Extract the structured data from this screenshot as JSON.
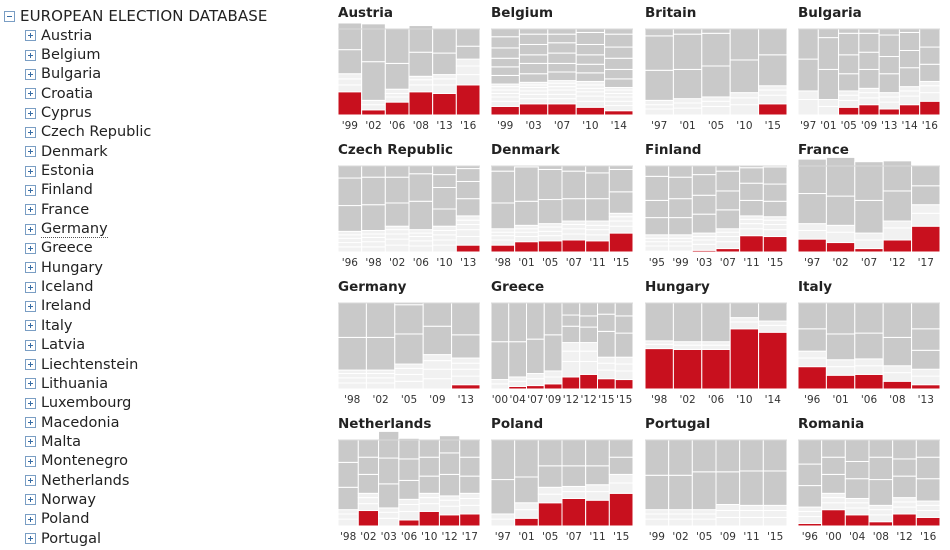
{
  "tree": {
    "root_label": "EUROPEAN ELECTION DATABASE",
    "hovered_index": 10,
    "items": [
      "Austria",
      "Belgium",
      "Bulgaria",
      "Croatia",
      "Cyprus",
      "Czech Republic",
      "Denmark",
      "Estonia",
      "Finland",
      "France",
      "Germany",
      "Greece",
      "Hungary",
      "Iceland",
      "Ireland",
      "Italy",
      "Latvia",
      "Liechtenstein",
      "Lithuania",
      "Luxembourg",
      "Macedonia",
      "Malta",
      "Montenegro",
      "Netherlands",
      "Norway",
      "Poland",
      "Portugal"
    ]
  },
  "colors": {
    "highlight": "#c8101e",
    "upper": "#c9c9c9",
    "lower": "#f1f1f1",
    "divider": "#ffffff",
    "grid_top": "#d9d9d9"
  },
  "chart_data": [
    {
      "type": "bar",
      "title": "Austria",
      "stacked": true,
      "ylim": [
        0,
        100
      ],
      "categories": [
        "'99",
        "'02",
        "'06",
        "'08",
        "'13",
        "'16"
      ],
      "highlight": [
        27,
        6,
        15,
        27,
        25,
        35
      ],
      "lower": [
        [
          8,
          7,
          6
        ],
        [
          6,
          5
        ],
        [
          6,
          4,
          5
        ],
        [
          8,
          6,
          4
        ],
        [
          10,
          7,
          5
        ],
        [
          12,
          10,
          8
        ]
      ],
      "upper": [
        [
          28,
          31
        ],
        [
          45,
          44
        ],
        [
          30,
          40
        ],
        [
          28,
          31
        ],
        [
          25,
          28
        ],
        [
          15,
          20
        ]
      ]
    },
    {
      "type": "bar",
      "title": "Belgium",
      "stacked": true,
      "ylim": [
        0,
        100
      ],
      "categories": [
        "'99",
        "'03",
        "'07",
        "'10",
        "'14"
      ],
      "highlight": [
        10,
        13,
        13,
        9,
        5
      ],
      "lower": [
        [
          6,
          5,
          4,
          4,
          4,
          3
        ],
        [
          6,
          5,
          4,
          4,
          3,
          3
        ],
        [
          6,
          5,
          5,
          4,
          4,
          3
        ],
        [
          7,
          6,
          5,
          4,
          4,
          4
        ],
        [
          6,
          5,
          5,
          4,
          4,
          3
        ]
      ],
      "upper": [
        [
          10,
          10,
          10,
          12,
          13
        ],
        [
          10,
          12,
          10,
          12,
          12
        ],
        [
          10,
          10,
          12,
          12,
          10
        ],
        [
          10,
          10,
          11,
          12,
          14
        ],
        [
          10,
          11,
          13,
          13,
          15
        ]
      ]
    },
    {
      "type": "bar",
      "title": "Britain",
      "stacked": true,
      "ylim": [
        0,
        100
      ],
      "categories": [
        "'97",
        "'01",
        "'05",
        "'10",
        "'15"
      ],
      "highlight": [
        0,
        0,
        0,
        0,
        13
      ],
      "lower": [
        [
          7,
          5,
          5
        ],
        [
          8,
          6,
          5
        ],
        [
          10,
          6,
          5
        ],
        [
          12,
          8,
          6
        ],
        [
          10,
          6,
          5
        ]
      ],
      "upper": [
        [
          35,
          40
        ],
        [
          34,
          41
        ],
        [
          36,
          38
        ],
        [
          38,
          36
        ],
        [
          36,
          30
        ]
      ]
    },
    {
      "type": "bar",
      "title": "Bulgaria",
      "stacked": true,
      "ylim": [
        0,
        100
      ],
      "categories": [
        "'97",
        "'01",
        "'05",
        "'09",
        "'13",
        "'14",
        "'16"
      ],
      "highlight": [
        0,
        0,
        9,
        12,
        7,
        12,
        16
      ],
      "lower": [
        [
          18,
          10
        ],
        [
          10,
          8
        ],
        [
          8,
          6,
          5
        ],
        [
          8,
          6,
          5
        ],
        [
          8,
          6,
          5
        ],
        [
          10,
          6,
          5
        ],
        [
          10,
          8,
          5
        ]
      ],
      "upper": [
        [
          37,
          35
        ],
        [
          35,
          37
        ],
        [
          20,
          22,
          25
        ],
        [
          22,
          20,
          22
        ],
        [
          22,
          20,
          25
        ],
        [
          22,
          20,
          21
        ],
        [
          20,
          20,
          21
        ]
      ]
    },
    {
      "type": "bar",
      "title": "Czech Republic",
      "stacked": true,
      "ylim": [
        0,
        100
      ],
      "categories": [
        "'96",
        "'98",
        "'02",
        "'06",
        "'10",
        "'13"
      ],
      "highlight": [
        0,
        0,
        0,
        0,
        0,
        8
      ],
      "lower": [
        [
          6,
          5,
          5,
          4,
          4
        ],
        [
          6,
          6,
          5,
          4,
          4
        ],
        [
          8,
          7,
          6,
          5,
          4
        ],
        [
          7,
          6,
          5,
          4,
          4
        ],
        [
          8,
          6,
          6,
          5,
          5
        ],
        [
          10,
          8,
          6,
          5,
          5
        ]
      ],
      "upper": [
        [
          30,
          32
        ],
        [
          30,
          32
        ],
        [
          27,
          30
        ],
        [
          33,
          32
        ],
        [
          20,
          25,
          15
        ],
        [
          20,
          20,
          15
        ]
      ]
    },
    {
      "type": "bar",
      "title": "Denmark",
      "stacked": true,
      "ylim": [
        0,
        100
      ],
      "categories": [
        "'98",
        "'01",
        "'05",
        "'07",
        "'11",
        "'15"
      ],
      "highlight": [
        8,
        12,
        13,
        14,
        13,
        22
      ],
      "lower": [
        [
          6,
          5,
          4,
          4
        ],
        [
          6,
          5,
          4,
          4
        ],
        [
          6,
          5,
          5,
          4
        ],
        [
          7,
          6,
          5,
          4
        ],
        [
          7,
          6,
          5,
          5
        ],
        [
          8,
          6,
          5,
          4
        ]
      ],
      "upper": [
        [
          30,
          37
        ],
        [
          28,
          40
        ],
        [
          28,
          35
        ],
        [
          26,
          32
        ],
        [
          26,
          30
        ],
        [
          25,
          26
        ]
      ]
    },
    {
      "type": "bar",
      "title": "Finland",
      "stacked": true,
      "ylim": [
        0,
        100
      ],
      "categories": [
        "'95",
        "'99",
        "'03",
        "'07",
        "'11",
        "'15"
      ],
      "highlight": [
        1,
        1,
        2,
        4,
        19,
        18
      ],
      "lower": [
        [
          6,
          5,
          4,
          4
        ],
        [
          6,
          5,
          4,
          4
        ],
        [
          7,
          5,
          4,
          4
        ],
        [
          8,
          6,
          5,
          4
        ],
        [
          8,
          6,
          5,
          4
        ],
        [
          8,
          6,
          5,
          4
        ]
      ],
      "upper": [
        [
          20,
          20,
          28
        ],
        [
          20,
          22,
          25
        ],
        [
          22,
          22,
          24
        ],
        [
          22,
          22,
          23
        ],
        [
          18,
          20,
          18
        ],
        [
          18,
          20,
          20
        ]
      ]
    },
    {
      "type": "bar",
      "title": "France",
      "stacked": true,
      "ylim": [
        0,
        100
      ],
      "categories": [
        "'97",
        "'02",
        "'07",
        "'12",
        "'17"
      ],
      "highlight": [
        15,
        11,
        4,
        14,
        30
      ],
      "lower": [
        [
          10,
          8
        ],
        [
          12,
          8
        ],
        [
          10,
          8
        ],
        [
          14,
          8
        ],
        [
          15,
          10
        ]
      ],
      "upper": [
        [
          35,
          40
        ],
        [
          34,
          45
        ],
        [
          38,
          45
        ],
        [
          35,
          35
        ],
        [
          22,
          23
        ]
      ]
    },
    {
      "type": "bar",
      "title": "Germany",
      "stacked": true,
      "ylim": [
        0,
        100
      ],
      "categories": [
        "'98",
        "'02",
        "'05",
        "'09",
        "'13"
      ],
      "highlight": [
        0,
        0,
        0,
        0,
        5
      ],
      "lower": [
        [
          7,
          6,
          5,
          4
        ],
        [
          7,
          6,
          5,
          4
        ],
        [
          9,
          8,
          7,
          5
        ],
        [
          12,
          11,
          10,
          7
        ],
        [
          10,
          8,
          7,
          6
        ]
      ],
      "upper": [
        [
          38,
          40
        ],
        [
          38,
          40
        ],
        [
          35,
          34
        ],
        [
          33,
          27
        ],
        [
          27,
          37
        ]
      ]
    },
    {
      "type": "bar",
      "title": "Greece",
      "stacked": true,
      "ylim": [
        0,
        100
      ],
      "categories": [
        "'00",
        "'04",
        "'07",
        "'09",
        "'12",
        "'12",
        "'15",
        "'15"
      ],
      "highlight": [
        0,
        3,
        4,
        6,
        14,
        17,
        12,
        11
      ],
      "lower": [
        [
          6,
          5
        ],
        [
          6,
          5
        ],
        [
          8,
          6
        ],
        [
          8,
          7
        ],
        [
          18,
          12,
          10
        ],
        [
          15,
          12,
          10
        ],
        [
          10,
          8,
          7
        ],
        [
          10,
          8,
          8
        ]
      ],
      "upper": [
        [
          44,
          45
        ],
        [
          41,
          45
        ],
        [
          40,
          42
        ],
        [
          42,
          37
        ],
        [
          19,
          13,
          14
        ],
        [
          18,
          13,
          15
        ],
        [
          30,
          20,
          13
        ],
        [
          28,
          20,
          15
        ]
      ]
    },
    {
      "type": "bar",
      "title": "Hungary",
      "stacked": true,
      "ylim": [
        0,
        100
      ],
      "categories": [
        "'98",
        "'02",
        "'06",
        "'10",
        "'14"
      ],
      "highlight": [
        47,
        46,
        46,
        70,
        66
      ],
      "lower": [
        [
          5,
          4
        ],
        [
          5,
          4
        ],
        [
          5,
          4
        ],
        [
          8,
          5
        ],
        [
          8,
          5
        ]
      ],
      "upper": [
        [
          44
        ],
        [
          45
        ],
        [
          45
        ],
        [
          17
        ],
        [
          21
        ]
      ]
    },
    {
      "type": "bar",
      "title": "Italy",
      "stacked": true,
      "ylim": [
        0,
        100
      ],
      "categories": [
        "'96",
        "'01",
        "'06",
        "'08",
        "'13"
      ],
      "highlight": [
        26,
        16,
        17,
        9,
        5
      ],
      "lower": [
        [
          10,
          8
        ],
        [
          10,
          8
        ],
        [
          10,
          8
        ],
        [
          10,
          8
        ],
        [
          10,
          8
        ]
      ],
      "upper": [
        [
          26,
          30
        ],
        [
          30,
          36
        ],
        [
          30,
          35
        ],
        [
          33,
          40
        ],
        [
          22,
          25,
          30
        ]
      ]
    },
    {
      "type": "bar",
      "title": "Netherlands",
      "stacked": true,
      "ylim": [
        0,
        100
      ],
      "categories": [
        "'98",
        "'02",
        "'03",
        "'06",
        "'10",
        "'12",
        "'17"
      ],
      "highlight": [
        0,
        18,
        0,
        7,
        17,
        13,
        14
      ],
      "lower": [
        [
          8,
          6,
          5
        ],
        [
          8,
          7,
          5
        ],
        [
          9,
          7,
          5
        ],
        [
          10,
          8,
          6
        ],
        [
          9,
          7,
          5
        ],
        [
          10,
          7,
          5
        ],
        [
          10,
          8,
          6
        ]
      ],
      "upper": [
        [
          26,
          29,
          26
        ],
        [
          22,
          20,
          20
        ],
        [
          28,
          30,
          31
        ],
        [
          22,
          25,
          24
        ],
        [
          20,
          22,
          20
        ],
        [
          25,
          25,
          20
        ],
        [
          20,
          22,
          20
        ]
      ]
    },
    {
      "type": "bar",
      "title": "Poland",
      "stacked": true,
      "ylim": [
        0,
        100
      ],
      "categories": [
        "'97",
        "'01",
        "'05",
        "'07",
        "'11",
        "'15"
      ],
      "highlight": [
        0,
        9,
        27,
        32,
        30,
        38
      ],
      "lower": [
        [
          8,
          6
        ],
        [
          10,
          8
        ],
        [
          10,
          8
        ],
        [
          8,
          6
        ],
        [
          10,
          8
        ],
        [
          12,
          10
        ]
      ],
      "upper": [
        [
          40,
          46
        ],
        [
          30,
          43
        ],
        [
          25,
          30
        ],
        [
          24,
          30
        ],
        [
          22,
          30
        ],
        [
          20,
          20
        ]
      ]
    },
    {
      "type": "bar",
      "title": "Portugal",
      "stacked": true,
      "ylim": [
        0,
        100
      ],
      "categories": [
        "'99",
        "'02",
        "'05",
        "'09",
        "'11",
        "'15"
      ],
      "highlight": [
        0,
        0,
        0,
        0,
        0,
        0
      ],
      "lower": [
        [
          8,
          6,
          5
        ],
        [
          8,
          6,
          5
        ],
        [
          8,
          6,
          5
        ],
        [
          10,
          8,
          7
        ],
        [
          10,
          8,
          6
        ],
        [
          10,
          8,
          6
        ]
      ],
      "upper": [
        [
          40,
          41
        ],
        [
          40,
          41
        ],
        [
          44,
          37
        ],
        [
          38,
          37
        ],
        [
          40,
          36
        ],
        [
          40,
          36
        ]
      ]
    },
    {
      "type": "bar",
      "title": "Romania",
      "stacked": true,
      "ylim": [
        0,
        100
      ],
      "categories": [
        "'96",
        "'00",
        "'04",
        "'08",
        "'12",
        "'16"
      ],
      "highlight": [
        3,
        19,
        13,
        5,
        14,
        10
      ],
      "lower": [
        [
          8,
          6,
          5
        ],
        [
          8,
          6,
          5
        ],
        [
          8,
          6,
          5
        ],
        [
          8,
          6,
          5
        ],
        [
          8,
          6,
          5
        ],
        [
          8,
          6,
          5
        ]
      ],
      "upper": [
        [
          25,
          25,
          28
        ],
        [
          22,
          20,
          20
        ],
        [
          23,
          20,
          25
        ],
        [
          30,
          26,
          20
        ],
        [
          25,
          20,
          22
        ],
        [
          26,
          25,
          20
        ]
      ]
    }
  ]
}
